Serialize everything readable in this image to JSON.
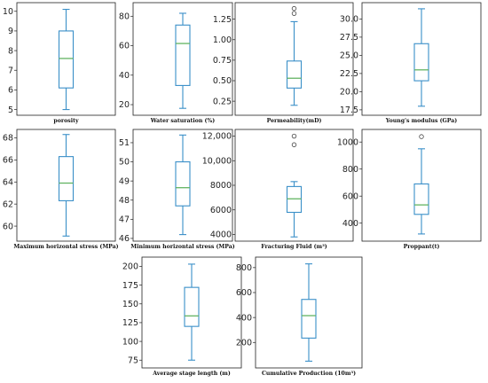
{
  "colors": {
    "box": "#3a8fc8",
    "median": "#63b463",
    "outlier": "#444444"
  },
  "chart_data": [
    {
      "type": "boxplot",
      "xlabel": "porosity",
      "ylim": [
        4.8,
        10.35
      ],
      "ticks": [
        "5",
        "6",
        "7",
        "8",
        "9",
        "10"
      ],
      "tick_values": [
        5,
        6,
        7,
        8,
        9,
        10
      ],
      "stats": {
        "min": 5.0,
        "q1": 6.1,
        "median": 7.6,
        "q3": 9.0,
        "max": 10.1
      },
      "outliers": []
    },
    {
      "type": "boxplot",
      "xlabel": "Water saturation (%)",
      "ylim": [
        14,
        88
      ],
      "ticks": [
        "20",
        "40",
        "60",
        "80"
      ],
      "tick_values": [
        20,
        40,
        60,
        80
      ],
      "stats": {
        "min": 17.5,
        "q1": 33,
        "median": 61.5,
        "q3": 74,
        "max": 82
      },
      "outliers": []
    },
    {
      "type": "boxplot",
      "xlabel": "Permeability(mD)",
      "ylim": [
        0.1,
        1.43
      ],
      "ticks": [
        "0.25",
        "0.50",
        "0.75",
        "1.00",
        "1.25"
      ],
      "tick_values": [
        0.25,
        0.5,
        0.75,
        1.0,
        1.25
      ],
      "stats": {
        "min": 0.2,
        "q1": 0.41,
        "median": 0.53,
        "q3": 0.74,
        "max": 1.22
      },
      "outliers": [
        1.32,
        1.38
      ]
    },
    {
      "type": "boxplot",
      "xlabel": "Young's modulus (GPa)",
      "ylim": [
        17.0,
        32.0
      ],
      "ticks": [
        "17.5",
        "20.0",
        "22.5",
        "25.0",
        "27.5",
        "30.0"
      ],
      "tick_values": [
        17.5,
        20,
        22.5,
        25,
        27.5,
        30
      ],
      "stats": {
        "min": 18.0,
        "q1": 21.5,
        "median": 23.0,
        "q3": 26.6,
        "max": 31.4
      },
      "outliers": []
    },
    {
      "type": "boxplot",
      "xlabel": "Maximum horizontal stress (MPa)",
      "ylim": [
        58.8,
        68.6
      ],
      "ticks": [
        "60",
        "62",
        "64",
        "66",
        "68"
      ],
      "tick_values": [
        60,
        62,
        64,
        66,
        68
      ],
      "stats": {
        "min": 59.1,
        "q1": 62.3,
        "median": 63.9,
        "q3": 66.3,
        "max": 68.3
      },
      "outliers": []
    },
    {
      "type": "boxplot",
      "xlabel": "Minimum horizontal stress (MPa)",
      "ylim": [
        45.95,
        51.6
      ],
      "ticks": [
        "46",
        "47",
        "48",
        "49",
        "50",
        "51"
      ],
      "tick_values": [
        46,
        47,
        48,
        49,
        50,
        51
      ],
      "stats": {
        "min": 46.2,
        "q1": 47.7,
        "median": 48.65,
        "q3": 50.0,
        "max": 51.4
      },
      "outliers": []
    },
    {
      "type": "boxplot",
      "xlabel": "Fracturing Fluid (m³)",
      "ylim": [
        3600,
        12400
      ],
      "ticks": [
        "4000",
        "6000",
        "8000",
        "10,000",
        "12,000"
      ],
      "tick_values": [
        4000,
        6000,
        8000,
        10000,
        12000
      ],
      "stats": {
        "min": 3800,
        "q1": 5800,
        "median": 6900,
        "q3": 7900,
        "max": 8300
      },
      "outliers": [
        11300,
        12000
      ]
    },
    {
      "type": "boxplot",
      "xlabel": "Proppant(t)",
      "ylim": [
        280,
        1080
      ],
      "ticks": [
        "400",
        "600",
        "800",
        "1000"
      ],
      "tick_values": [
        400,
        600,
        800,
        1000
      ],
      "stats": {
        "min": 320,
        "q1": 465,
        "median": 535,
        "q3": 690,
        "max": 950
      },
      "outliers": [
        1040
      ]
    },
    {
      "type": "boxplot",
      "xlabel": "Average stage length (m)",
      "ylim": [
        67,
        210
      ],
      "ticks": [
        "75",
        "100",
        "125",
        "150",
        "175",
        "200"
      ],
      "tick_values": [
        75,
        100,
        125,
        150,
        175,
        200
      ],
      "stats": {
        "min": 75,
        "q1": 120,
        "median": 134,
        "q3": 172,
        "max": 203
      },
      "outliers": []
    },
    {
      "type": "boxplot",
      "xlabel": "Cumulative Production (10m³)",
      "ylim": [
        10,
        870
      ],
      "ticks": [
        "200",
        "400",
        "600",
        "800"
      ],
      "tick_values": [
        200,
        400,
        600,
        800
      ],
      "stats": {
        "min": 50,
        "q1": 235,
        "median": 415,
        "q3": 545,
        "max": 830
      },
      "outliers": []
    }
  ]
}
